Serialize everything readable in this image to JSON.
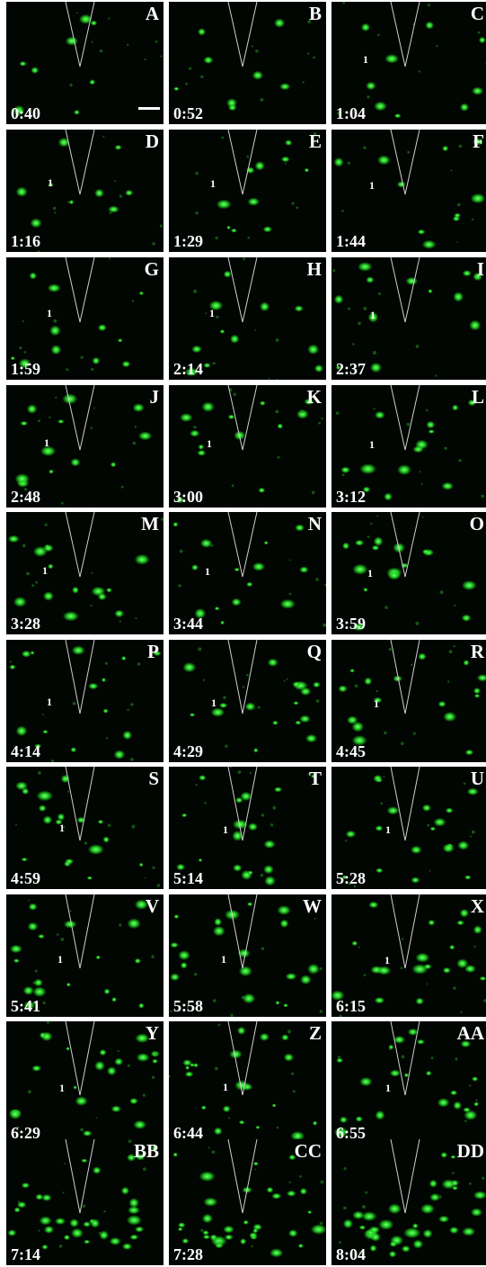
{
  "panels": [
    {
      "letter": "A",
      "time": "0:40",
      "tag": ""
    },
    {
      "letter": "B",
      "time": "0:52",
      "tag": ""
    },
    {
      "letter": "C",
      "time": "1:04",
      "tag": "1"
    },
    {
      "letter": "D",
      "time": "1:16",
      "tag": "1"
    },
    {
      "letter": "E",
      "time": "1:29",
      "tag": "1"
    },
    {
      "letter": "F",
      "time": "1:44",
      "tag": "1"
    },
    {
      "letter": "G",
      "time": "1:59",
      "tag": "1"
    },
    {
      "letter": "H",
      "time": "2:14",
      "tag": "1"
    },
    {
      "letter": "I",
      "time": "2:37",
      "tag": "1"
    },
    {
      "letter": "J",
      "time": "2:48",
      "tag": "1"
    },
    {
      "letter": "K",
      "time": "3:00",
      "tag": "1"
    },
    {
      "letter": "L",
      "time": "3:12",
      "tag": "1"
    },
    {
      "letter": "M",
      "time": "3:28",
      "tag": "1"
    },
    {
      "letter": "N",
      "time": "3:44",
      "tag": "1"
    },
    {
      "letter": "O",
      "time": "3:59",
      "tag": "1"
    },
    {
      "letter": "P",
      "time": "4:14",
      "tag": "1"
    },
    {
      "letter": "Q",
      "time": "4:29",
      "tag": "1"
    },
    {
      "letter": "R",
      "time": "4:45",
      "tag": "1"
    },
    {
      "letter": "S",
      "time": "4:59",
      "tag": "1"
    },
    {
      "letter": "T",
      "time": "5:14",
      "tag": "1"
    },
    {
      "letter": "U",
      "time": "5:28",
      "tag": "1"
    },
    {
      "letter": "V",
      "time": "5:41",
      "tag": "1"
    },
    {
      "letter": "W",
      "time": "5:58",
      "tag": "1"
    },
    {
      "letter": "X",
      "time": "6:15",
      "tag": "1"
    },
    {
      "letter": "Y",
      "time": "6:29",
      "tag": "1"
    },
    {
      "letter": "Z",
      "time": "6:44",
      "tag": "1"
    },
    {
      "letter": "AA",
      "time": "6:55",
      "tag": "1"
    },
    {
      "letter": "BB",
      "time": "7:14",
      "tag": ""
    },
    {
      "letter": "CC",
      "time": "7:28",
      "tag": ""
    },
    {
      "letter": "DD",
      "time": "8:04",
      "tag": ""
    }
  ],
  "colors": {
    "background": "#020602",
    "cell_glow": "#22d622",
    "label_text": "#ffffff",
    "pipette": "#cfcfcf"
  }
}
